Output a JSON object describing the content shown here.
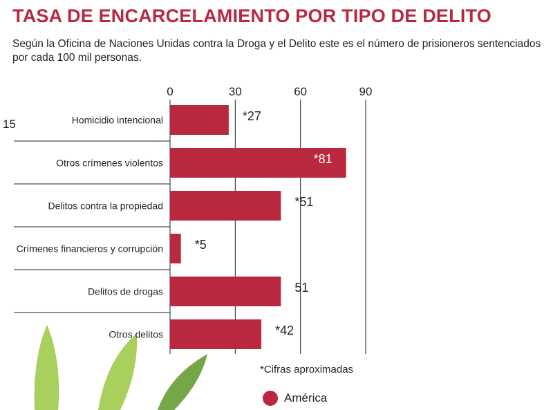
{
  "title": "TASA DE ENCARCELAMIENTO POR TIPO DE DELITO",
  "subtitle": "Según la Oficina de Naciones Unidas contra la Droga y el Delito este es el número de prisioneros sentenciados por cada 100 mil personas.",
  "stray_label": "15",
  "footnote": "*Cifras aproximadas",
  "colors": {
    "bar": "#b8283e",
    "title": "#b8283e",
    "leaf_light": "#a9cf5c",
    "leaf_dark": "#5d9628"
  },
  "decoration": "cannabis-leaf-illustration",
  "chart_data": {
    "type": "bar",
    "orientation": "horizontal",
    "categories": [
      "Homicidio intencional",
      "Otros crímenes violentos",
      "Delitos contra la propiedad",
      "Crímenes financieros y corrupción",
      "Delitos de drogas",
      "Otros delitos"
    ],
    "series": [
      {
        "name": "América",
        "values": [
          27,
          81,
          51,
          5,
          51,
          42
        ]
      }
    ],
    "data_labels": [
      "*27",
      "*81",
      "*51",
      "*5",
      "51",
      "*42"
    ],
    "x_ticks": [
      0,
      30,
      60,
      90
    ],
    "xlim": [
      0,
      90
    ],
    "grid": true,
    "legend": "bottom"
  }
}
